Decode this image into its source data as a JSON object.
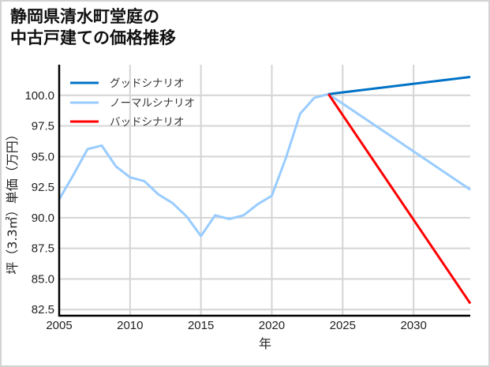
{
  "title": "静岡県清水町堂庭の\n中古戸建ての価格推移",
  "chart_data": {
    "type": "line",
    "title": "静岡県清水町堂庭の中古戸建ての価格推移",
    "xlabel": "年",
    "ylabel": "坪（3.3㎡）単価（万円）",
    "xlim": [
      2005,
      2034
    ],
    "ylim": [
      82.0,
      102.5
    ],
    "grid": true,
    "legend_position": "upper left",
    "x_ticks": [
      2005,
      2010,
      2015,
      2020,
      2025,
      2030
    ],
    "x_tick_labels": [
      "2005",
      "2010",
      "2015",
      "2020",
      "2025",
      "2030"
    ],
    "y_ticks": [
      82.5,
      85.0,
      87.5,
      90.0,
      92.5,
      95.0,
      97.5,
      100.0
    ],
    "y_tick_labels": [
      "82.5",
      "85.0",
      "87.5",
      "90.0",
      "92.5",
      "95.0",
      "97.5",
      "100.0"
    ],
    "series": [
      {
        "name": "グッドシナリオ",
        "color": "#0072c6",
        "x": [
          2024,
          2034
        ],
        "values": [
          100.1,
          101.5
        ]
      },
      {
        "name": "ノーマルシナリオ",
        "color": "#99ccff",
        "x": [
          2005,
          2006,
          2007,
          2008,
          2009,
          2010,
          2011,
          2012,
          2013,
          2014,
          2015,
          2016,
          2017,
          2018,
          2019,
          2020,
          2021,
          2022,
          2023,
          2024,
          2034
        ],
        "values": [
          91.5,
          93.5,
          95.6,
          95.9,
          94.2,
          93.3,
          93.0,
          91.9,
          91.2,
          90.1,
          88.5,
          90.2,
          89.9,
          90.2,
          91.1,
          91.8,
          94.9,
          98.5,
          99.8,
          100.1,
          92.3
        ]
      },
      {
        "name": "バッドシナリオ",
        "color": "#ff0000",
        "x": [
          2024,
          2034
        ],
        "values": [
          100.1,
          83.0
        ]
      }
    ]
  }
}
